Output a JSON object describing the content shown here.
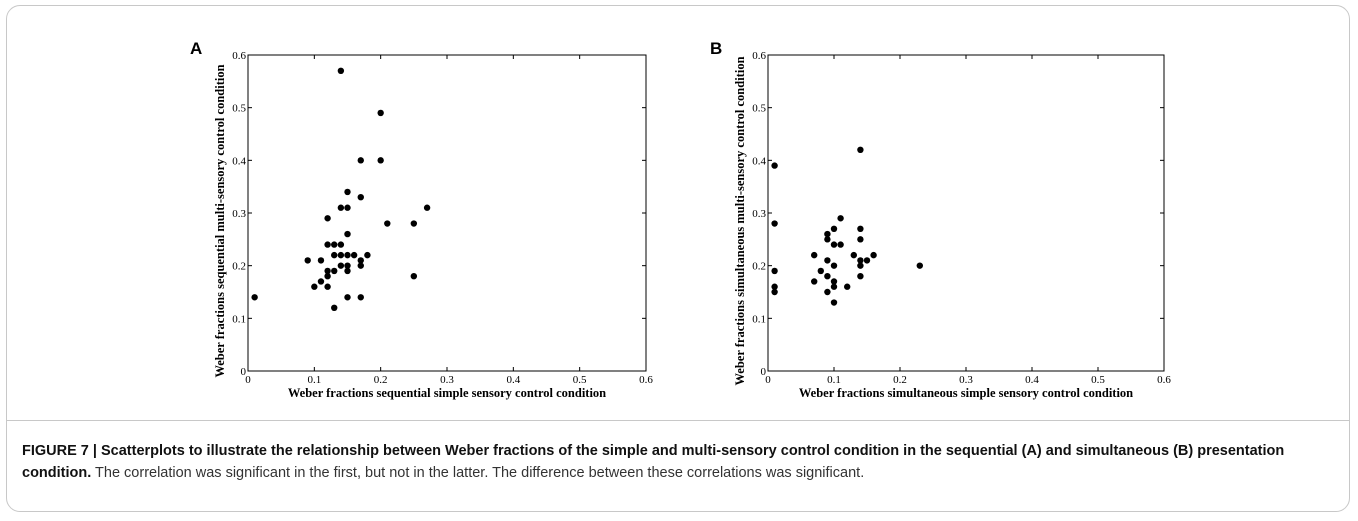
{
  "caption": {
    "figure_label": "FIGURE 7 | ",
    "title": "Scatterplots to illustrate the relationship between Weber fractions of the simple and multi-sensory control condition in the sequential (A) and simultaneous (B) presentation condition.",
    "text": " The correlation was significant in the first, but not in the latter. The difference between these correlations was significant."
  },
  "chart_data": [
    {
      "type": "scatter",
      "panel": "A",
      "xlabel": "Weber fractions sequential simple sensory control condition",
      "ylabel": "Weber fractions sequential multi-sensory control condition",
      "xlim": [
        0,
        0.6
      ],
      "ylim": [
        0,
        0.6
      ],
      "xticks": [
        "0",
        "0.1",
        "0.2",
        "0.3",
        "0.4",
        "0.5",
        "0.6"
      ],
      "yticks": [
        "0",
        "0.1",
        "0.2",
        "0.3",
        "0.4",
        "0.5",
        "0.6"
      ],
      "grid": false,
      "points": [
        [
          0.01,
          0.14
        ],
        [
          0.09,
          0.21
        ],
        [
          0.1,
          0.16
        ],
        [
          0.11,
          0.21
        ],
        [
          0.11,
          0.17
        ],
        [
          0.12,
          0.29
        ],
        [
          0.12,
          0.24
        ],
        [
          0.12,
          0.19
        ],
        [
          0.12,
          0.18
        ],
        [
          0.12,
          0.16
        ],
        [
          0.13,
          0.24
        ],
        [
          0.13,
          0.22
        ],
        [
          0.13,
          0.19
        ],
        [
          0.13,
          0.12
        ],
        [
          0.14,
          0.57
        ],
        [
          0.14,
          0.31
        ],
        [
          0.14,
          0.24
        ],
        [
          0.14,
          0.22
        ],
        [
          0.14,
          0.2
        ],
        [
          0.15,
          0.34
        ],
        [
          0.15,
          0.31
        ],
        [
          0.15,
          0.26
        ],
        [
          0.15,
          0.22
        ],
        [
          0.15,
          0.2
        ],
        [
          0.15,
          0.19
        ],
        [
          0.15,
          0.14
        ],
        [
          0.16,
          0.22
        ],
        [
          0.17,
          0.4
        ],
        [
          0.17,
          0.33
        ],
        [
          0.17,
          0.21
        ],
        [
          0.17,
          0.2
        ],
        [
          0.17,
          0.14
        ],
        [
          0.18,
          0.22
        ],
        [
          0.2,
          0.49
        ],
        [
          0.2,
          0.4
        ],
        [
          0.21,
          0.28
        ],
        [
          0.25,
          0.28
        ],
        [
          0.25,
          0.18
        ],
        [
          0.27,
          0.31
        ]
      ]
    },
    {
      "type": "scatter",
      "panel": "B",
      "xlabel": "Weber fractions simultaneous simple sensory control condition",
      "ylabel": "Weber fractions simultaneous multi-sensory control condition",
      "xlim": [
        0,
        0.6
      ],
      "ylim": [
        0,
        0.6
      ],
      "xticks": [
        "0",
        "0.1",
        "0.2",
        "0.3",
        "0.4",
        "0.5",
        "0.6"
      ],
      "yticks": [
        "0",
        "0.1",
        "0.2",
        "0.3",
        "0.4",
        "0.5",
        "0.6"
      ],
      "grid": false,
      "points": [
        [
          0.01,
          0.39
        ],
        [
          0.01,
          0.28
        ],
        [
          0.01,
          0.19
        ],
        [
          0.01,
          0.16
        ],
        [
          0.01,
          0.15
        ],
        [
          0.07,
          0.22
        ],
        [
          0.07,
          0.17
        ],
        [
          0.08,
          0.19
        ],
        [
          0.09,
          0.26
        ],
        [
          0.09,
          0.25
        ],
        [
          0.09,
          0.21
        ],
        [
          0.09,
          0.18
        ],
        [
          0.09,
          0.15
        ],
        [
          0.1,
          0.27
        ],
        [
          0.1,
          0.24
        ],
        [
          0.1,
          0.2
        ],
        [
          0.1,
          0.17
        ],
        [
          0.1,
          0.16
        ],
        [
          0.1,
          0.13
        ],
        [
          0.11,
          0.29
        ],
        [
          0.11,
          0.24
        ],
        [
          0.12,
          0.16
        ],
        [
          0.13,
          0.22
        ],
        [
          0.14,
          0.42
        ],
        [
          0.14,
          0.27
        ],
        [
          0.14,
          0.25
        ],
        [
          0.14,
          0.21
        ],
        [
          0.14,
          0.2
        ],
        [
          0.14,
          0.18
        ],
        [
          0.15,
          0.21
        ],
        [
          0.16,
          0.22
        ],
        [
          0.23,
          0.2
        ]
      ]
    }
  ]
}
